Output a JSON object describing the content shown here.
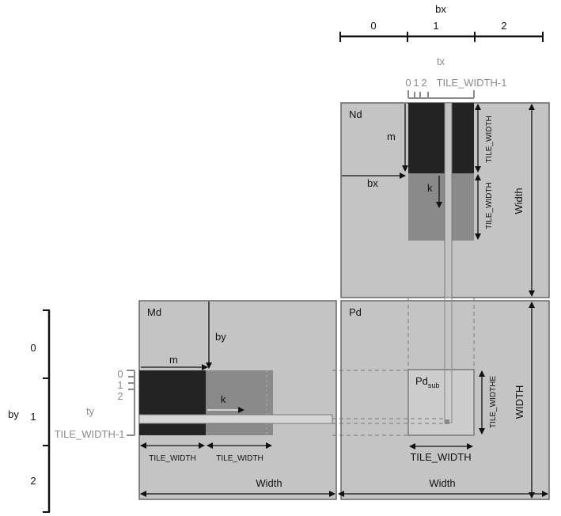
{
  "matrices": {
    "nd": "Nd",
    "md": "Md",
    "pd": "Pd",
    "pd_sub": "Pd",
    "pd_sub_subscript": "sub"
  },
  "labels": {
    "m_nd": "m",
    "bx_nd": "bx",
    "k_nd": "k",
    "tile_width_nd_top": "TILE_WIDTH",
    "tile_width_nd_bottom": "TILE_WIDTH",
    "width_nd": "Width",
    "by_md": "by",
    "m_md": "m",
    "k_md": "k",
    "tile_width_md_1": "TILE_WIDTH",
    "tile_width_md_2": "TILE_WIDTH",
    "width_md": "Width",
    "tile_widthe_pd": "TILE_WIDTHE",
    "tile_width_pd": "TILE_WIDTH",
    "width_pd_bottom": "Width",
    "width_pd_right": "WIDTH"
  },
  "bx_axis": {
    "title": "bx",
    "ticks": [
      "0",
      "1",
      "2"
    ]
  },
  "by_axis": {
    "title": "by",
    "ticks": [
      "0",
      "1",
      "2"
    ]
  },
  "tx_axis": {
    "title": "tx",
    "ticks": [
      "0",
      "1",
      "2"
    ],
    "last": "TILE_WIDTH-1"
  },
  "ty_axis": {
    "title": "ty",
    "ticks": [
      "0",
      "1",
      "2"
    ],
    "last": "TILE_WIDTH-1"
  },
  "colors": {
    "matrix_fill": "#c4c4c4",
    "dark_tile": "#232323",
    "mid_tile": "#8a8a8a",
    "line": "#333333",
    "gray_text": "#8a8a8a"
  }
}
